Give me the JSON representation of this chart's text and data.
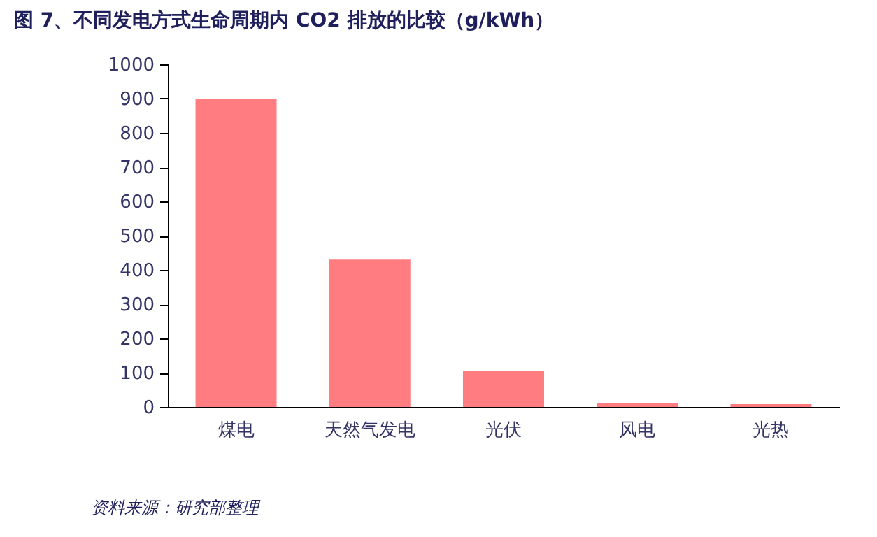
{
  "chart_data": {
    "type": "bar",
    "title": "图 7、不同发电方式生命周期内 CO2 排放的比较（g/kWh）",
    "categories": [
      "煤电",
      "天然气发电",
      "光伏",
      "风电",
      "光热"
    ],
    "values": [
      900,
      430,
      105,
      12,
      8
    ],
    "color": "#ff7c80",
    "ylim": [
      0,
      1000
    ],
    "yticks": [
      0,
      100,
      200,
      300,
      400,
      500,
      600,
      700,
      800,
      900,
      1000
    ],
    "grid": false,
    "annotations": [
      "资料来源：研究部整理"
    ]
  }
}
